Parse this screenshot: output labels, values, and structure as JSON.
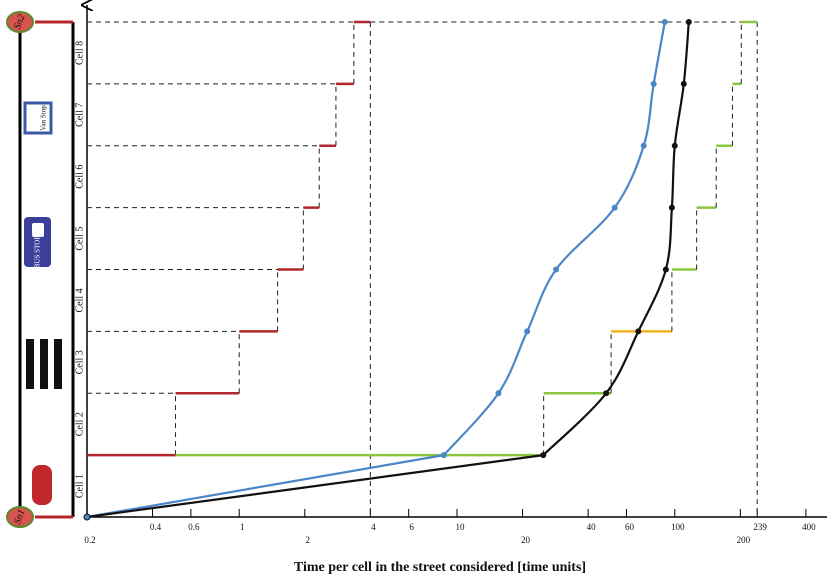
{
  "chart_data": {
    "type": "line",
    "xlabel": "Time per cell in the street considered [time units]",
    "xscale": "log",
    "xlim": [
      0.2,
      500
    ],
    "xticks": [
      0.2,
      0.4,
      0.6,
      1,
      2,
      4,
      6,
      10,
      20,
      40,
      60,
      100,
      200,
      239,
      400
    ],
    "ylim": [
      0,
      8
    ],
    "categories": [
      "Cell 1",
      "Cell 2",
      "Cell 3",
      "Cell 4",
      "Cell 5",
      "Cell 6",
      "Cell 7",
      "Cell 8"
    ],
    "annotations": [
      "Sn1",
      "Sn2",
      "Van Stop",
      "BUS STOP"
    ],
    "series": [
      {
        "style": "step",
        "color": "#b3262b",
        "values": [
          0.51,
          1.0,
          1.5,
          1.97,
          2.33,
          2.78,
          3.36,
          4.0
        ]
      },
      {
        "style": "step",
        "color": "#8cc540",
        "segment_colors": [
          "#8cc540",
          "#8cc540",
          "#f0b323",
          "#8cc540",
          "#8cc540",
          "#8cc540",
          "#8cc540",
          "#8cc540"
        ],
        "values": [
          25,
          51,
          97,
          126,
          155,
          184,
          202,
          239
        ]
      },
      {
        "style": "curve",
        "color": "#4a86c8",
        "values": [
          8.7,
          15.5,
          21,
          28.5,
          53,
          72,
          80,
          90
        ]
      },
      {
        "style": "curve",
        "color": "#111111",
        "values": [
          24.9,
          48.4,
          68,
          91,
          97,
          100,
          110,
          116
        ]
      }
    ]
  }
}
